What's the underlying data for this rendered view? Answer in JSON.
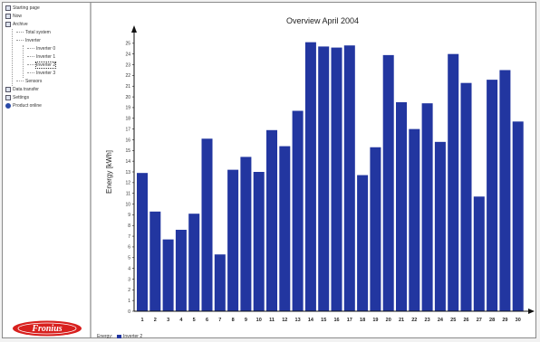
{
  "sidebar": {
    "items": [
      {
        "label": "Starting page",
        "icon": "home-icon",
        "indent": 0,
        "style": "box"
      },
      {
        "label": "Now",
        "icon": "clock-icon",
        "indent": 0,
        "style": "box"
      },
      {
        "label": "Archive",
        "icon": "archive-icon",
        "indent": 0,
        "style": "box"
      },
      {
        "label": "Total system",
        "icon": "",
        "indent": 1,
        "style": "none"
      },
      {
        "label": "Inverter",
        "icon": "",
        "indent": 1,
        "style": "none"
      },
      {
        "label": "Inverter 0",
        "icon": "",
        "indent": 2,
        "style": "none"
      },
      {
        "label": "Inverter 1",
        "icon": "",
        "indent": 2,
        "style": "none"
      },
      {
        "label": "Inverter 2",
        "icon": "",
        "indent": 2,
        "style": "none",
        "selected": true
      },
      {
        "label": "Inverter 3",
        "icon": "",
        "indent": 2,
        "style": "none"
      },
      {
        "label": "Sensors",
        "icon": "",
        "indent": 1,
        "style": "none"
      },
      {
        "label": "Data transfer",
        "icon": "transfer-icon",
        "indent": 0,
        "style": "box"
      },
      {
        "label": "Settings",
        "icon": "settings-icon",
        "indent": 0,
        "style": "box"
      },
      {
        "label": "Product online",
        "icon": "info-icon",
        "indent": 0,
        "style": "round"
      }
    ],
    "logo_text": "Fronius",
    "logo_color": "#d8201e"
  },
  "legend": {
    "label": "Energy:",
    "series_label": "Inverter 2",
    "color": "#2236a0"
  },
  "chart_data": {
    "type": "bar",
    "title": "Overview April 2004",
    "ylabel": "Energy [kWh]",
    "xlabel": "",
    "categories": [
      "1",
      "2",
      "3",
      "4",
      "5",
      "6",
      "7",
      "8",
      "9",
      "10",
      "11",
      "12",
      "13",
      "14",
      "15",
      "16",
      "17",
      "18",
      "19",
      "20",
      "21",
      "22",
      "23",
      "24",
      "25",
      "26",
      "27",
      "28",
      "29",
      "30"
    ],
    "values": [
      12.9,
      9.3,
      6.7,
      7.6,
      9.1,
      16.1,
      5.3,
      13.2,
      14.4,
      13.0,
      16.9,
      15.4,
      18.7,
      25.1,
      24.7,
      24.6,
      24.8,
      12.7,
      15.3,
      23.9,
      19.5,
      17.0,
      19.4,
      15.8,
      24.0,
      21.3,
      10.7,
      21.6,
      22.5,
      17.7
    ],
    "ylim": [
      0,
      26
    ],
    "yticks": [
      "0",
      "1",
      "2",
      "3",
      "4",
      "5",
      "6",
      "7",
      "8",
      "9",
      "10",
      "11",
      "12",
      "13",
      "14",
      "15",
      "16",
      "17",
      "18",
      "19",
      "20",
      "21",
      "22",
      "23",
      "24",
      "25"
    ],
    "bar_color": "#2236a0",
    "grid": false
  }
}
